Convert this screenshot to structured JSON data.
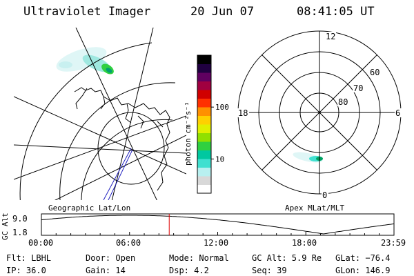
{
  "header": {
    "instrument": "Ultraviolet Imager",
    "date": "20 Jun 07",
    "time": "08:41:05 UT"
  },
  "colorbar": {
    "unit_label": "photon cm⁻²s⁻¹",
    "ticks": [
      {
        "label": "100",
        "value": 100
      },
      {
        "label": "10",
        "value": 10
      }
    ],
    "colors": [
      "#ffffff",
      "#d8d8d8",
      "#b8f0f0",
      "#40e0d0",
      "#00c8a0",
      "#30d040",
      "#90e000",
      "#e0f000",
      "#ffd000",
      "#ff9000",
      "#ff3000",
      "#d00000",
      "#a00040",
      "#600060",
      "#200040",
      "#000000"
    ]
  },
  "left_map": {
    "label": "Geographic Lat/Lon"
  },
  "right_map": {
    "label": "Apex MLat/MLT",
    "mlt_labels": {
      "top": "12",
      "left": "18",
      "right": "6",
      "bottom": "0"
    },
    "lat_labels": [
      "60",
      "70",
      "80"
    ]
  },
  "altitude_plot": {
    "ylabel": "GC Alt",
    "yticks": [
      "9.0",
      "1.8"
    ],
    "xticks": [
      "00:00",
      "06:00",
      "12:00",
      "18:00",
      "23:59"
    ],
    "current_time_fraction": 0.3625,
    "marker_color": "#dd0000"
  },
  "status": {
    "row1": {
      "flt": "Flt: LBHL",
      "door": "Door: Open",
      "mode": "Mode: Normal",
      "gcalt": "GC Alt: 5.9 Re",
      "glat": "GLat: −76.4"
    },
    "row2": {
      "ip": "IP: 36.0",
      "gain": "Gain: 14",
      "dsp": "Dsp:    4.2",
      "seq": "Seq: 39",
      "glon": "GLon: 146.9"
    }
  }
}
